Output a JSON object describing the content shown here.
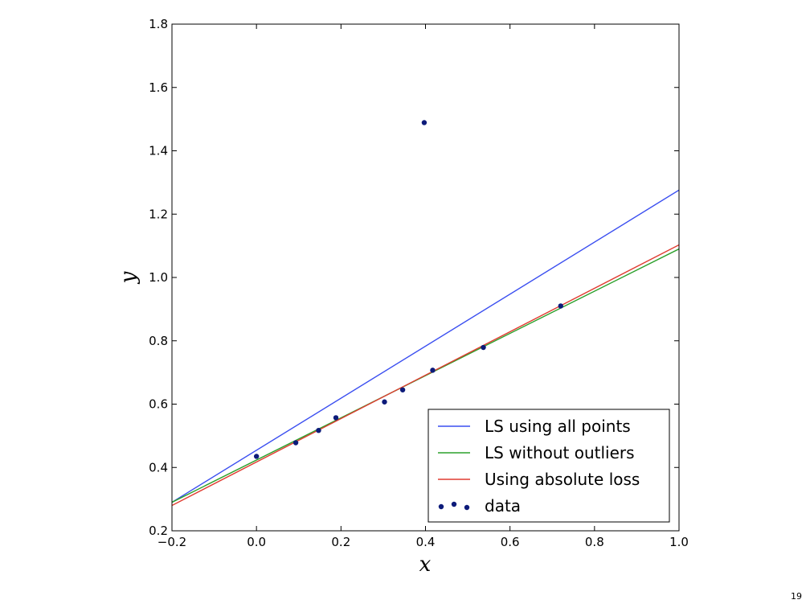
{
  "page_number": "19",
  "chart_data": {
    "type": "scatter",
    "title": "",
    "xlabel": "x",
    "ylabel": "y",
    "xlim": [
      -0.2,
      1.0
    ],
    "ylim": [
      0.2,
      1.8
    ],
    "x_ticks": [
      -0.2,
      0.0,
      0.2,
      0.4,
      0.6,
      0.8,
      1.0
    ],
    "x_tick_labels": [
      "−0.2",
      "0.0",
      "0.2",
      "0.4",
      "0.6",
      "0.8",
      "1.0"
    ],
    "y_ticks": [
      0.2,
      0.4,
      0.6,
      0.8,
      1.0,
      1.2,
      1.4,
      1.6,
      1.8
    ],
    "y_tick_labels": [
      "0.2",
      "0.4",
      "0.6",
      "0.8",
      "1.0",
      "1.2",
      "1.4",
      "1.6",
      "1.8"
    ],
    "grid": false,
    "legend_position": "lower-right",
    "lines": [
      {
        "name": "LS using all points",
        "color": "#3a4ef0",
        "x": [
          -0.2,
          1.0
        ],
        "y": [
          0.29,
          1.276
        ]
      },
      {
        "name": "LS without outliers",
        "color": "#2ca02c",
        "x": [
          -0.2,
          1.0
        ],
        "y": [
          0.29,
          1.09
        ]
      },
      {
        "name": "Using absolute loss",
        "color": "#e03c31",
        "x": [
          -0.2,
          1.0
        ],
        "y": [
          0.28,
          1.103
        ]
      }
    ],
    "scatter": {
      "name": "data",
      "color": "#0d1b7a",
      "x": [
        0.0,
        0.093,
        0.147,
        0.188,
        0.303,
        0.346,
        0.397,
        0.417,
        0.537,
        0.72
      ],
      "y": [
        0.435,
        0.478,
        0.517,
        0.557,
        0.607,
        0.645,
        1.489,
        0.707,
        0.779,
        0.91
      ]
    }
  }
}
